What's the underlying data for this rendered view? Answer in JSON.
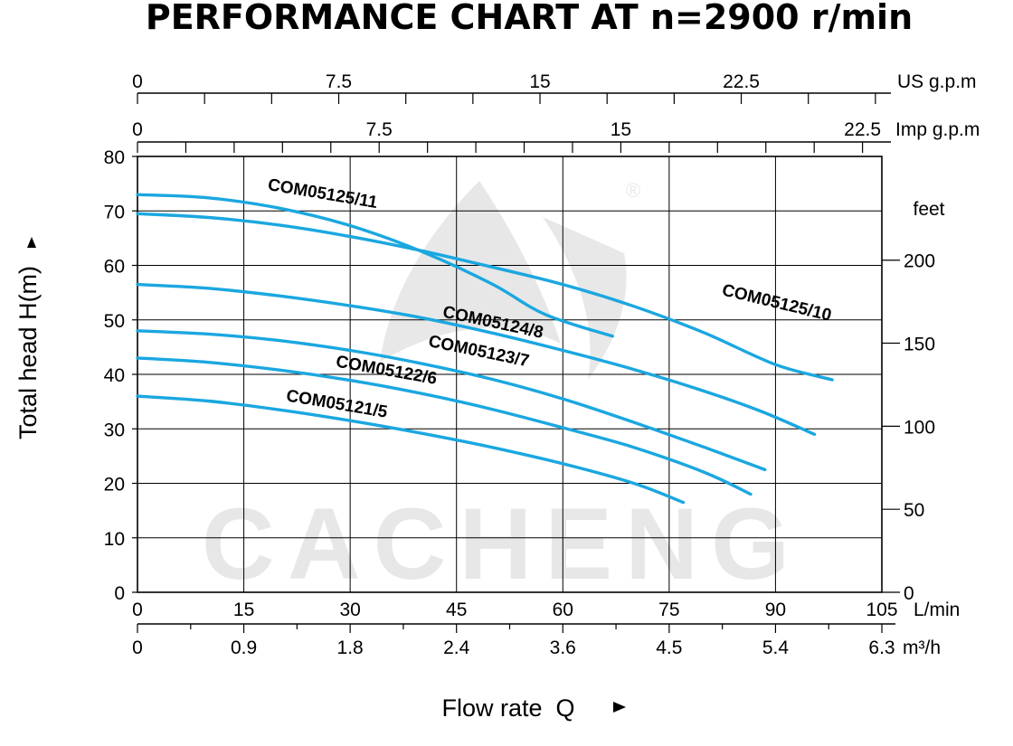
{
  "chart_data": {
    "type": "line",
    "title": "PERFORMANCE CHART AT n=2900 r/min",
    "xlabel": "Flow rate  Q",
    "ylabel": "Total  head H(m)",
    "xlim": [
      0,
      105
    ],
    "ylim": [
      0,
      80
    ],
    "grid": true,
    "x_axis": {
      "unit": "L/min",
      "tick_labels": [
        "0",
        "15",
        "30",
        "45",
        "60",
        "75",
        "90",
        "105"
      ]
    },
    "y_axis": {
      "tick_labels": [
        "0",
        "10",
        "20",
        "30",
        "40",
        "50",
        "60",
        "70",
        "80"
      ]
    },
    "secondary_bottom_axis": {
      "unit": "m³/h",
      "tick_labels": [
        "0",
        "0.9",
        "1.8",
        "2.4",
        "3.6",
        "4.5",
        "5.4",
        "6.3"
      ]
    },
    "top_axes": [
      {
        "unit": "US g.p.m",
        "tick_labels": [
          "0",
          "7.5",
          "15",
          "22.5"
        ],
        "max": 27.74
      },
      {
        "unit": "Imp g.p.m",
        "tick_labels": [
          "0",
          "7.5",
          "15",
          "22.5"
        ],
        "max": 23.1
      }
    ],
    "right_axis": {
      "unit": "feet",
      "tick_labels": [
        "0",
        "50",
        "100",
        "150",
        "200"
      ]
    },
    "line_color": "#1aa7e0",
    "series": [
      {
        "name": "COM05125/11",
        "x": [
          0,
          10,
          20,
          30,
          40,
          50,
          57.5,
          67
        ],
        "y": [
          73,
          72.4,
          70.5,
          67.3,
          62.6,
          56.6,
          51,
          47
        ]
      },
      {
        "name": "COM05125/10",
        "x": [
          0,
          10,
          20,
          30,
          40,
          50,
          60,
          70,
          80,
          90,
          98
        ],
        "y": [
          69.5,
          68.8,
          67.4,
          65.3,
          62.7,
          59.7,
          56.5,
          52.5,
          47.6,
          41.8,
          39
        ]
      },
      {
        "name": "COM05124/8",
        "x": [
          0,
          10,
          20,
          30,
          40,
          50,
          60,
          70,
          80,
          88,
          95.5
        ],
        "y": [
          56.5,
          55.8,
          54.4,
          52.6,
          50.4,
          47.6,
          44.4,
          40.9,
          36.9,
          33.2,
          29
        ]
      },
      {
        "name": "COM05123/7",
        "x": [
          0,
          10,
          20,
          30,
          40,
          50,
          60,
          70,
          80,
          88.5
        ],
        "y": [
          48,
          47.4,
          46.2,
          44.4,
          42,
          39.1,
          35.5,
          31.2,
          26.6,
          22.5
        ]
      },
      {
        "name": "COM05122/6",
        "x": [
          0,
          10,
          20,
          30,
          40,
          50,
          60,
          70,
          80,
          86.5
        ],
        "y": [
          43,
          42.2,
          40.8,
          38.9,
          36.5,
          33.6,
          30.2,
          26.6,
          22,
          18
        ]
      },
      {
        "name": "COM05121/5",
        "x": [
          0,
          10,
          20,
          30,
          40,
          50,
          60,
          70,
          77
        ],
        "y": [
          36,
          35.1,
          33.5,
          31.5,
          29.2,
          26.6,
          23.6,
          20,
          16.5
        ]
      }
    ],
    "watermark": "CACHENG"
  }
}
